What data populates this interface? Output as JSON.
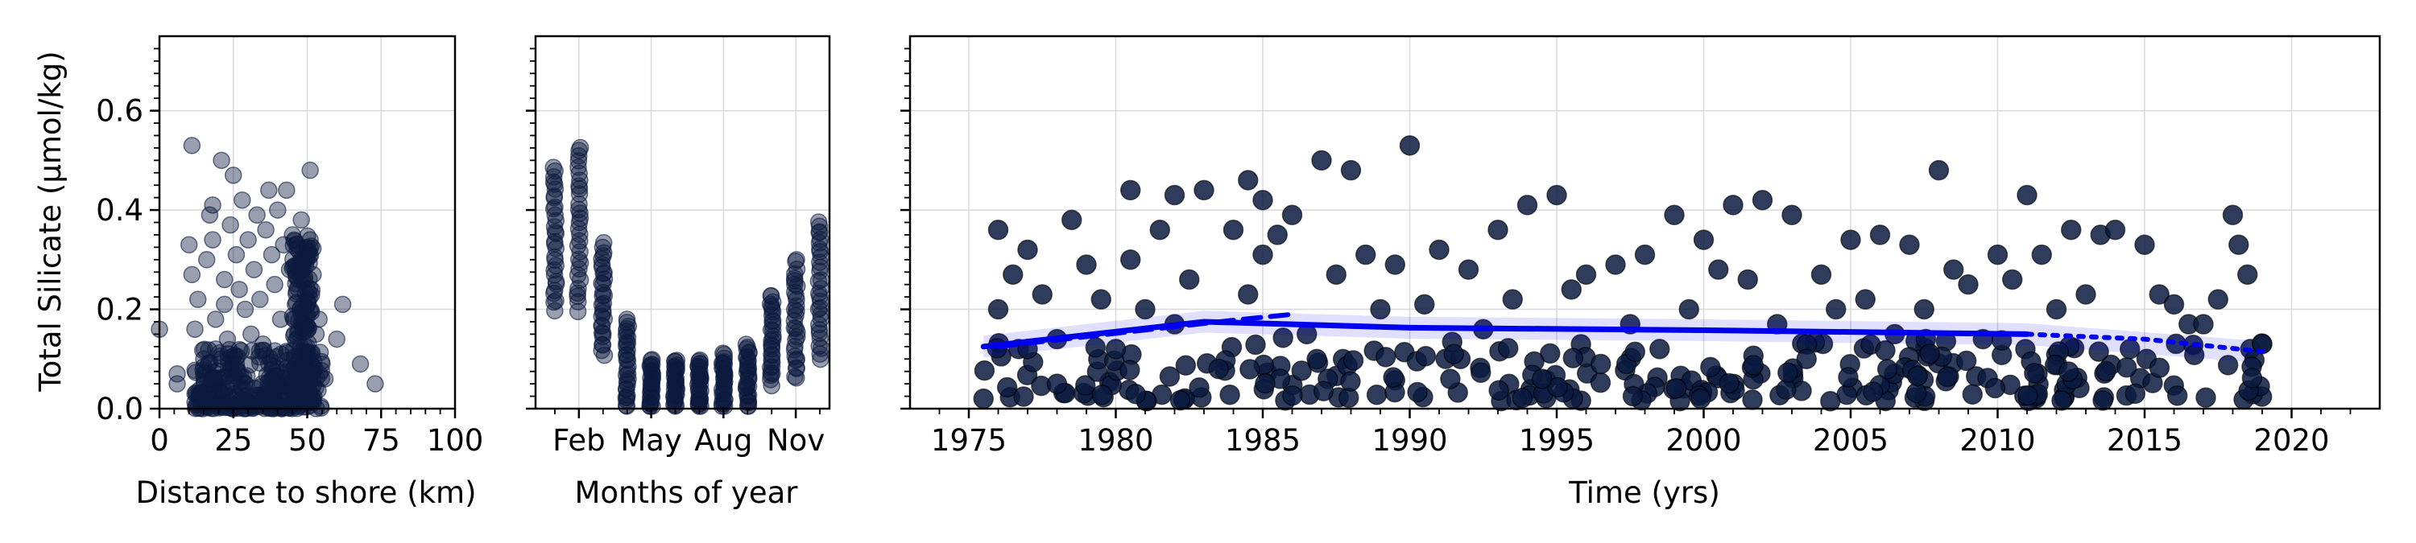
{
  "chart_data": [
    {
      "type": "scatter",
      "xlabel": "Distance to shore (km)",
      "ylabel": "Total Silicate (μmol/kg)",
      "xlim": [
        0,
        100
      ],
      "ylim": [
        0,
        0.75
      ],
      "x_ticks": [
        "0",
        "25",
        "50",
        "75",
        "100"
      ],
      "y_ticks": [
        "0.0",
        "0.2",
        "0.4",
        "0.6"
      ],
      "grid": true,
      "marker_color": "#0b1a3f",
      "points": [
        [
          0,
          0.16
        ],
        [
          6,
          0.05
        ],
        [
          6,
          0.07
        ],
        [
          11,
          0.53
        ],
        [
          10,
          0.33
        ],
        [
          11,
          0.27
        ],
        [
          12,
          0.16
        ],
        [
          13,
          0.22
        ],
        [
          15,
          0.1
        ],
        [
          16,
          0.3
        ],
        [
          17,
          0.39
        ],
        [
          18,
          0.41
        ],
        [
          18,
          0.34
        ],
        [
          19,
          0.18
        ],
        [
          19,
          0.12
        ],
        [
          20,
          0.06
        ],
        [
          21,
          0.5
        ],
        [
          22,
          0.26
        ],
        [
          22,
          0.21
        ],
        [
          23,
          0.14
        ],
        [
          24,
          0.37
        ],
        [
          25,
          0.47
        ],
        [
          26,
          0.31
        ],
        [
          26,
          0.09
        ],
        [
          27,
          0.24
        ],
        [
          28,
          0.42
        ],
        [
          29,
          0.2
        ],
        [
          30,
          0.34
        ],
        [
          31,
          0.15
        ],
        [
          32,
          0.28
        ],
        [
          33,
          0.39
        ],
        [
          34,
          0.22
        ],
        [
          35,
          0.13
        ],
        [
          36,
          0.36
        ],
        [
          37,
          0.44
        ],
        [
          38,
          0.31
        ],
        [
          39,
          0.25
        ],
        [
          40,
          0.4
        ],
        [
          41,
          0.18
        ],
        [
          42,
          0.33
        ],
        [
          43,
          0.44
        ],
        [
          44,
          0.28
        ],
        [
          45,
          0.35
        ],
        [
          46,
          0.21
        ],
        [
          47,
          0.26
        ],
        [
          48,
          0.38
        ],
        [
          49,
          0.3
        ],
        [
          50,
          0.22
        ],
        [
          51,
          0.48
        ],
        [
          51,
          0.34
        ],
        [
          52,
          0.27
        ],
        [
          53,
          0.15
        ],
        [
          54,
          0.18
        ],
        [
          55,
          0.09
        ],
        [
          56,
          0.06
        ],
        [
          60,
          0.14
        ],
        [
          62,
          0.21
        ],
        [
          68,
          0.09
        ],
        [
          73,
          0.05
        ]
      ],
      "dense_cluster": {
        "x_range": [
          12,
          55
        ],
        "y_range": [
          0.0,
          0.12
        ]
      },
      "column_cluster": {
        "x": [
          45,
          52
        ],
        "y_range": [
          0.05,
          0.35
        ]
      }
    },
    {
      "type": "scatter",
      "xlabel": "Months of year",
      "x_ticks": [
        "Feb",
        "May",
        "Aug",
        "Nov"
      ],
      "ylim": [
        0,
        0.75
      ],
      "grid": true,
      "marker_color": "#0b1a3f",
      "monthly_ranges": [
        {
          "month": 1,
          "min": 0.2,
          "max": 0.49
        },
        {
          "month": 2,
          "min": 0.2,
          "max": 0.53
        },
        {
          "month": 3,
          "min": 0.11,
          "max": 0.33
        },
        {
          "month": 4,
          "min": 0.0,
          "max": 0.18
        },
        {
          "month": 5,
          "min": 0.0,
          "max": 0.1
        },
        {
          "month": 6,
          "min": 0.0,
          "max": 0.1
        },
        {
          "month": 7,
          "min": 0.0,
          "max": 0.1
        },
        {
          "month": 8,
          "min": 0.0,
          "max": 0.11
        },
        {
          "month": 9,
          "min": 0.0,
          "max": 0.13
        },
        {
          "month": 10,
          "min": 0.05,
          "max": 0.23
        },
        {
          "month": 11,
          "min": 0.06,
          "max": 0.3
        },
        {
          "month": 12,
          "min": 0.1,
          "max": 0.38
        }
      ]
    },
    {
      "type": "scatter",
      "xlabel": "Time (yrs)",
      "xlim": [
        1973,
        2023
      ],
      "x_ticks": [
        "1975",
        "1980",
        "1985",
        "1990",
        "1995",
        "2000",
        "2005",
        "2010",
        "2015",
        "2020"
      ],
      "ylim": [
        0,
        0.75
      ],
      "grid": true,
      "marker_color": "#0b1a3f",
      "trend_color": "#0000ee",
      "trend_segments": [
        {
          "style": "solid",
          "points": [
            [
              1975.5,
              0.125
            ],
            [
              1977,
              0.135
            ],
            [
              1983,
              0.175
            ],
            [
              1990,
              0.163
            ],
            [
              2000,
              0.158
            ],
            [
              2011,
              0.15
            ]
          ]
        },
        {
          "style": "dashed",
          "points": [
            [
              1976,
              0.125
            ],
            [
              1979,
              0.145
            ],
            [
              1982,
              0.165
            ],
            [
              1984,
              0.178
            ],
            [
              1986,
              0.19
            ]
          ]
        },
        {
          "style": "dotted",
          "points": [
            [
              2011,
              0.15
            ],
            [
              2015,
              0.14
            ],
            [
              2019,
              0.115
            ]
          ]
        }
      ],
      "band": {
        "x_range": [
          1975.5,
          2018.8
        ],
        "half_width": 0.022
      },
      "points": [
        [
          1975.5,
          0.02
        ],
        [
          1976,
          0.36
        ],
        [
          1976,
          0.2
        ],
        [
          1976.5,
          0.27
        ],
        [
          1977,
          0.12
        ],
        [
          1977,
          0.32
        ],
        [
          1977.5,
          0.23
        ],
        [
          1978,
          0.14
        ],
        [
          1978,
          0.05
        ],
        [
          1978.5,
          0.38
        ],
        [
          1979,
          0.29
        ],
        [
          1979.5,
          0.22
        ],
        [
          1980,
          0.12
        ],
        [
          1980.5,
          0.44
        ],
        [
          1980.5,
          0.3
        ],
        [
          1981,
          0.2
        ],
        [
          1981.5,
          0.36
        ],
        [
          1982,
          0.43
        ],
        [
          1982,
          0.17
        ],
        [
          1982.5,
          0.26
        ],
        [
          1983,
          0.44
        ],
        [
          1983.5,
          0.08
        ],
        [
          1984,
          0.36
        ],
        [
          1984.5,
          0.46
        ],
        [
          1984.5,
          0.23
        ],
        [
          1985,
          0.42
        ],
        [
          1985,
          0.31
        ],
        [
          1985.5,
          0.35
        ],
        [
          1986,
          0.39
        ],
        [
          1986.5,
          0.15
        ],
        [
          1987,
          0.5
        ],
        [
          1987.5,
          0.27
        ],
        [
          1988,
          0.48
        ],
        [
          1988.5,
          0.31
        ],
        [
          1989,
          0.2
        ],
        [
          1989.5,
          0.29
        ],
        [
          1990,
          0.53
        ],
        [
          1990.5,
          0.21
        ],
        [
          1991,
          0.32
        ],
        [
          1991.5,
          0.11
        ],
        [
          1992,
          0.28
        ],
        [
          1992.5,
          0.16
        ],
        [
          1993,
          0.36
        ],
        [
          1993.5,
          0.22
        ],
        [
          1994,
          0.41
        ],
        [
          1994.5,
          0.06
        ],
        [
          1995,
          0.43
        ],
        [
          1995.5,
          0.24
        ],
        [
          1996,
          0.27
        ],
        [
          1996.5,
          0.09
        ],
        [
          1997,
          0.29
        ],
        [
          1997.5,
          0.17
        ],
        [
          1998,
          0.31
        ],
        [
          1998.5,
          0.12
        ],
        [
          1999,
          0.39
        ],
        [
          1999.5,
          0.2
        ],
        [
          2000,
          0.34
        ],
        [
          2000.5,
          0.28
        ],
        [
          2001,
          0.41
        ],
        [
          2001.5,
          0.26
        ],
        [
          2002,
          0.42
        ],
        [
          2002.5,
          0.17
        ],
        [
          2003,
          0.39
        ],
        [
          2003.5,
          0.1
        ],
        [
          2004,
          0.27
        ],
        [
          2004.5,
          0.2
        ],
        [
          2005,
          0.34
        ],
        [
          2005.5,
          0.22
        ],
        [
          2006,
          0.35
        ],
        [
          2006.5,
          0.15
        ],
        [
          2007,
          0.33
        ],
        [
          2007.5,
          0.2
        ],
        [
          2008,
          0.48
        ],
        [
          2008.5,
          0.28
        ],
        [
          2009,
          0.25
        ],
        [
          2009.5,
          0.14
        ],
        [
          2010,
          0.31
        ],
        [
          2010.5,
          0.26
        ],
        [
          2011,
          0.43
        ],
        [
          2011.5,
          0.31
        ],
        [
          2012,
          0.2
        ],
        [
          2012.5,
          0.36
        ],
        [
          2013,
          0.23
        ],
        [
          2013.5,
          0.35
        ],
        [
          2014,
          0.36
        ],
        [
          2014.5,
          0.12
        ],
        [
          2015,
          0.33
        ],
        [
          2015.5,
          0.23
        ],
        [
          2016,
          0.21
        ],
        [
          2016.5,
          0.17
        ],
        [
          2017,
          0.17
        ],
        [
          2017.5,
          0.22
        ],
        [
          2018,
          0.39
        ],
        [
          2018.2,
          0.33
        ],
        [
          2018.5,
          0.27
        ],
        [
          2019,
          0.13
        ]
      ],
      "dense_band_y_range": [
        0.0,
        0.13
      ]
    }
  ]
}
